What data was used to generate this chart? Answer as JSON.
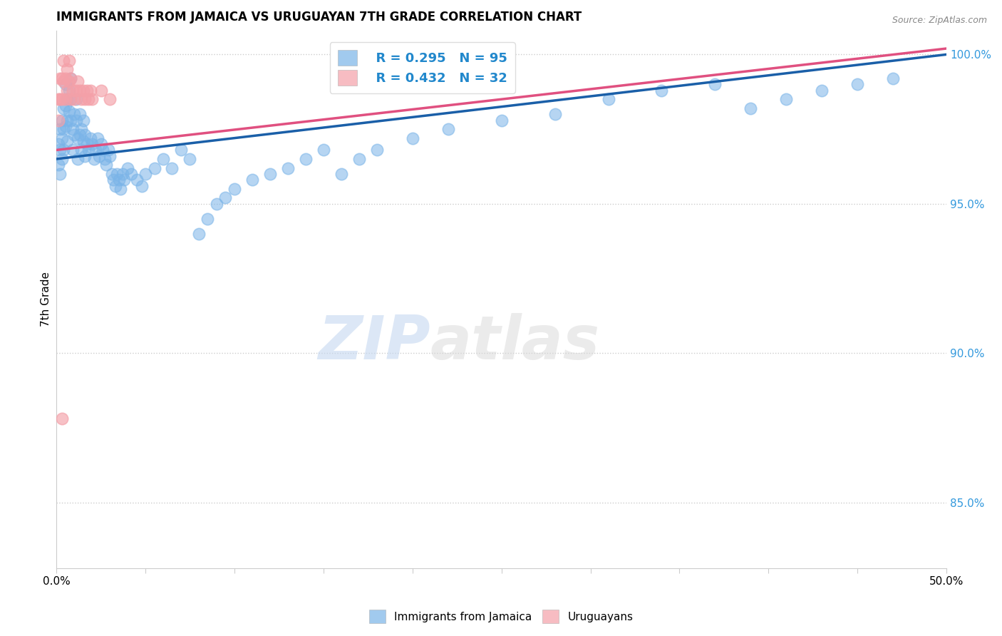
{
  "title": "IMMIGRANTS FROM JAMAICA VS URUGUAYAN 7TH GRADE CORRELATION CHART",
  "source": "Source: ZipAtlas.com",
  "ylabel": "7th Grade",
  "ylabel_right_ticks": [
    "85.0%",
    "90.0%",
    "95.0%",
    "100.0%"
  ],
  "ylabel_right_values": [
    0.85,
    0.9,
    0.95,
    1.0
  ],
  "xmin": 0.0,
  "xmax": 0.5,
  "ymin": 0.828,
  "ymax": 1.008,
  "legend_blue_r": "R = 0.295",
  "legend_blue_n": "N = 95",
  "legend_pink_r": "R = 0.432",
  "legend_pink_n": "N = 32",
  "blue_color": "#7ab4e8",
  "pink_color": "#f4a0a8",
  "blue_line_color": "#1a5fa8",
  "pink_line_color": "#e05080",
  "watermark_zip": "ZIP",
  "watermark_atlas": "atlas",
  "blue_scatter_x": [
    0.001,
    0.001,
    0.002,
    0.002,
    0.002,
    0.003,
    0.003,
    0.003,
    0.004,
    0.004,
    0.004,
    0.005,
    0.005,
    0.005,
    0.006,
    0.006,
    0.006,
    0.007,
    0.007,
    0.008,
    0.008,
    0.008,
    0.009,
    0.009,
    0.01,
    0.01,
    0.011,
    0.011,
    0.012,
    0.012,
    0.013,
    0.013,
    0.014,
    0.014,
    0.015,
    0.015,
    0.016,
    0.016,
    0.017,
    0.018,
    0.019,
    0.02,
    0.021,
    0.022,
    0.023,
    0.024,
    0.025,
    0.026,
    0.027,
    0.028,
    0.029,
    0.03,
    0.031,
    0.032,
    0.033,
    0.034,
    0.035,
    0.036,
    0.037,
    0.038,
    0.04,
    0.042,
    0.045,
    0.048,
    0.05,
    0.055,
    0.06,
    0.065,
    0.07,
    0.075,
    0.08,
    0.085,
    0.09,
    0.095,
    0.1,
    0.11,
    0.12,
    0.13,
    0.14,
    0.15,
    0.16,
    0.17,
    0.18,
    0.2,
    0.22,
    0.25,
    0.28,
    0.31,
    0.34,
    0.37,
    0.39,
    0.41,
    0.43,
    0.45,
    0.47
  ],
  "blue_scatter_y": [
    0.97,
    0.963,
    0.975,
    0.968,
    0.96,
    0.978,
    0.972,
    0.965,
    0.982,
    0.975,
    0.968,
    0.99,
    0.983,
    0.976,
    0.985,
    0.978,
    0.971,
    0.988,
    0.981,
    0.992,
    0.985,
    0.978,
    0.975,
    0.968,
    0.98,
    0.973,
    0.985,
    0.978,
    0.972,
    0.965,
    0.98,
    0.973,
    0.975,
    0.968,
    0.978,
    0.971,
    0.973,
    0.966,
    0.97,
    0.968,
    0.972,
    0.97,
    0.965,
    0.968,
    0.972,
    0.966,
    0.97,
    0.968,
    0.965,
    0.963,
    0.968,
    0.966,
    0.96,
    0.958,
    0.956,
    0.96,
    0.958,
    0.955,
    0.96,
    0.958,
    0.962,
    0.96,
    0.958,
    0.956,
    0.96,
    0.962,
    0.965,
    0.962,
    0.968,
    0.965,
    0.94,
    0.945,
    0.95,
    0.952,
    0.955,
    0.958,
    0.96,
    0.962,
    0.965,
    0.968,
    0.96,
    0.965,
    0.968,
    0.972,
    0.975,
    0.978,
    0.98,
    0.985,
    0.988,
    0.99,
    0.982,
    0.985,
    0.988,
    0.99,
    0.992
  ],
  "pink_scatter_x": [
    0.001,
    0.001,
    0.002,
    0.002,
    0.003,
    0.003,
    0.004,
    0.004,
    0.005,
    0.005,
    0.006,
    0.006,
    0.007,
    0.007,
    0.008,
    0.008,
    0.009,
    0.01,
    0.011,
    0.012,
    0.013,
    0.014,
    0.015,
    0.016,
    0.017,
    0.018,
    0.019,
    0.02,
    0.025,
    0.03,
    0.16,
    0.003
  ],
  "pink_scatter_y": [
    0.985,
    0.978,
    0.992,
    0.985,
    0.992,
    0.985,
    0.998,
    0.991,
    0.992,
    0.985,
    0.995,
    0.988,
    0.998,
    0.991,
    0.992,
    0.985,
    0.988,
    0.985,
    0.988,
    0.991,
    0.988,
    0.985,
    0.988,
    0.985,
    0.988,
    0.985,
    0.988,
    0.985,
    0.988,
    0.985,
    0.998,
    0.878
  ],
  "blue_trendline": [
    0.965,
    1.0
  ],
  "pink_trendline": [
    0.968,
    1.002
  ],
  "trendline_x": [
    0.0,
    0.5
  ]
}
